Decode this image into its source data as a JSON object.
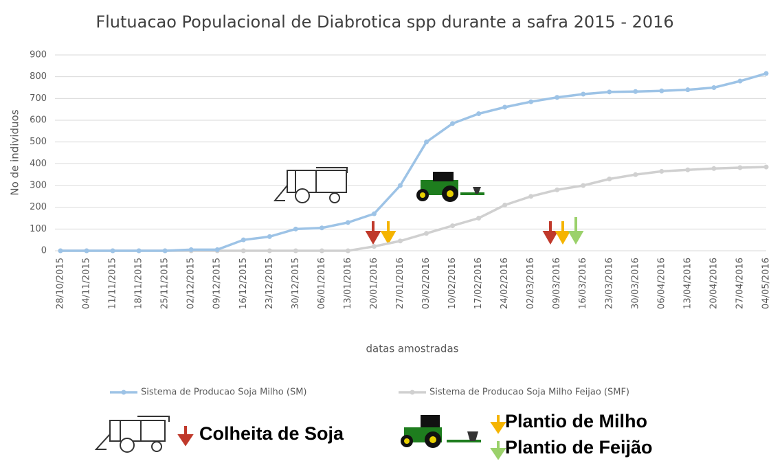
{
  "chart_data": {
    "type": "line",
    "title": "Flutuacao Populacional de Diabrotica spp durante a safra 2015 - 2016",
    "x_label": "datas amostradas",
    "y_label": "No de individuos",
    "categories": [
      "28/10/2015",
      "04/11/2015",
      "11/11/2015",
      "18/11/2015",
      "25/11/2015",
      "02/12/2015",
      "09/12/2015",
      "16/12/2015",
      "23/12/2015",
      "30/12/2015",
      "06/01/2016",
      "13/01/2016",
      "20/01/2016",
      "27/01/2016",
      "03/02/2016",
      "10/02/2016",
      "17/02/2016",
      "24/02/2016",
      "02/03/2016",
      "09/03/2016",
      "16/03/2016",
      "23/03/2016",
      "30/03/2016",
      "06/04/2016",
      "13/04/2016",
      "20/04/2016",
      "27/04/2016",
      "04/05/2016"
    ],
    "series": [
      {
        "name": "Sistema de Producao Soja Milho (SM)",
        "color": "#9dc3e6",
        "values": [
          0,
          0,
          0,
          0,
          0,
          5,
          5,
          50,
          65,
          100,
          105,
          130,
          170,
          300,
          500,
          585,
          630,
          660,
          685,
          705,
          720,
          730,
          732,
          735,
          740,
          750,
          780,
          815
        ]
      },
      {
        "name": "Sistema de Producao Soja Milho Feijao (SMF)",
        "color": "#d0d0d0",
        "values": [
          0,
          0,
          0,
          0,
          0,
          0,
          0,
          0,
          0,
          0,
          0,
          0,
          20,
          45,
          80,
          115,
          150,
          210,
          250,
          280,
          300,
          330,
          350,
          365,
          372,
          378,
          382,
          385
        ]
      }
    ],
    "ylim": [
      0,
      900
    ],
    "yticks": [
      0,
      100,
      200,
      300,
      400,
      500,
      600,
      700,
      800,
      900
    ],
    "grid": true,
    "annotations": [
      "Colheita de Soja",
      "Plantio de Milho",
      "Plantio de Feijão"
    ]
  }
}
